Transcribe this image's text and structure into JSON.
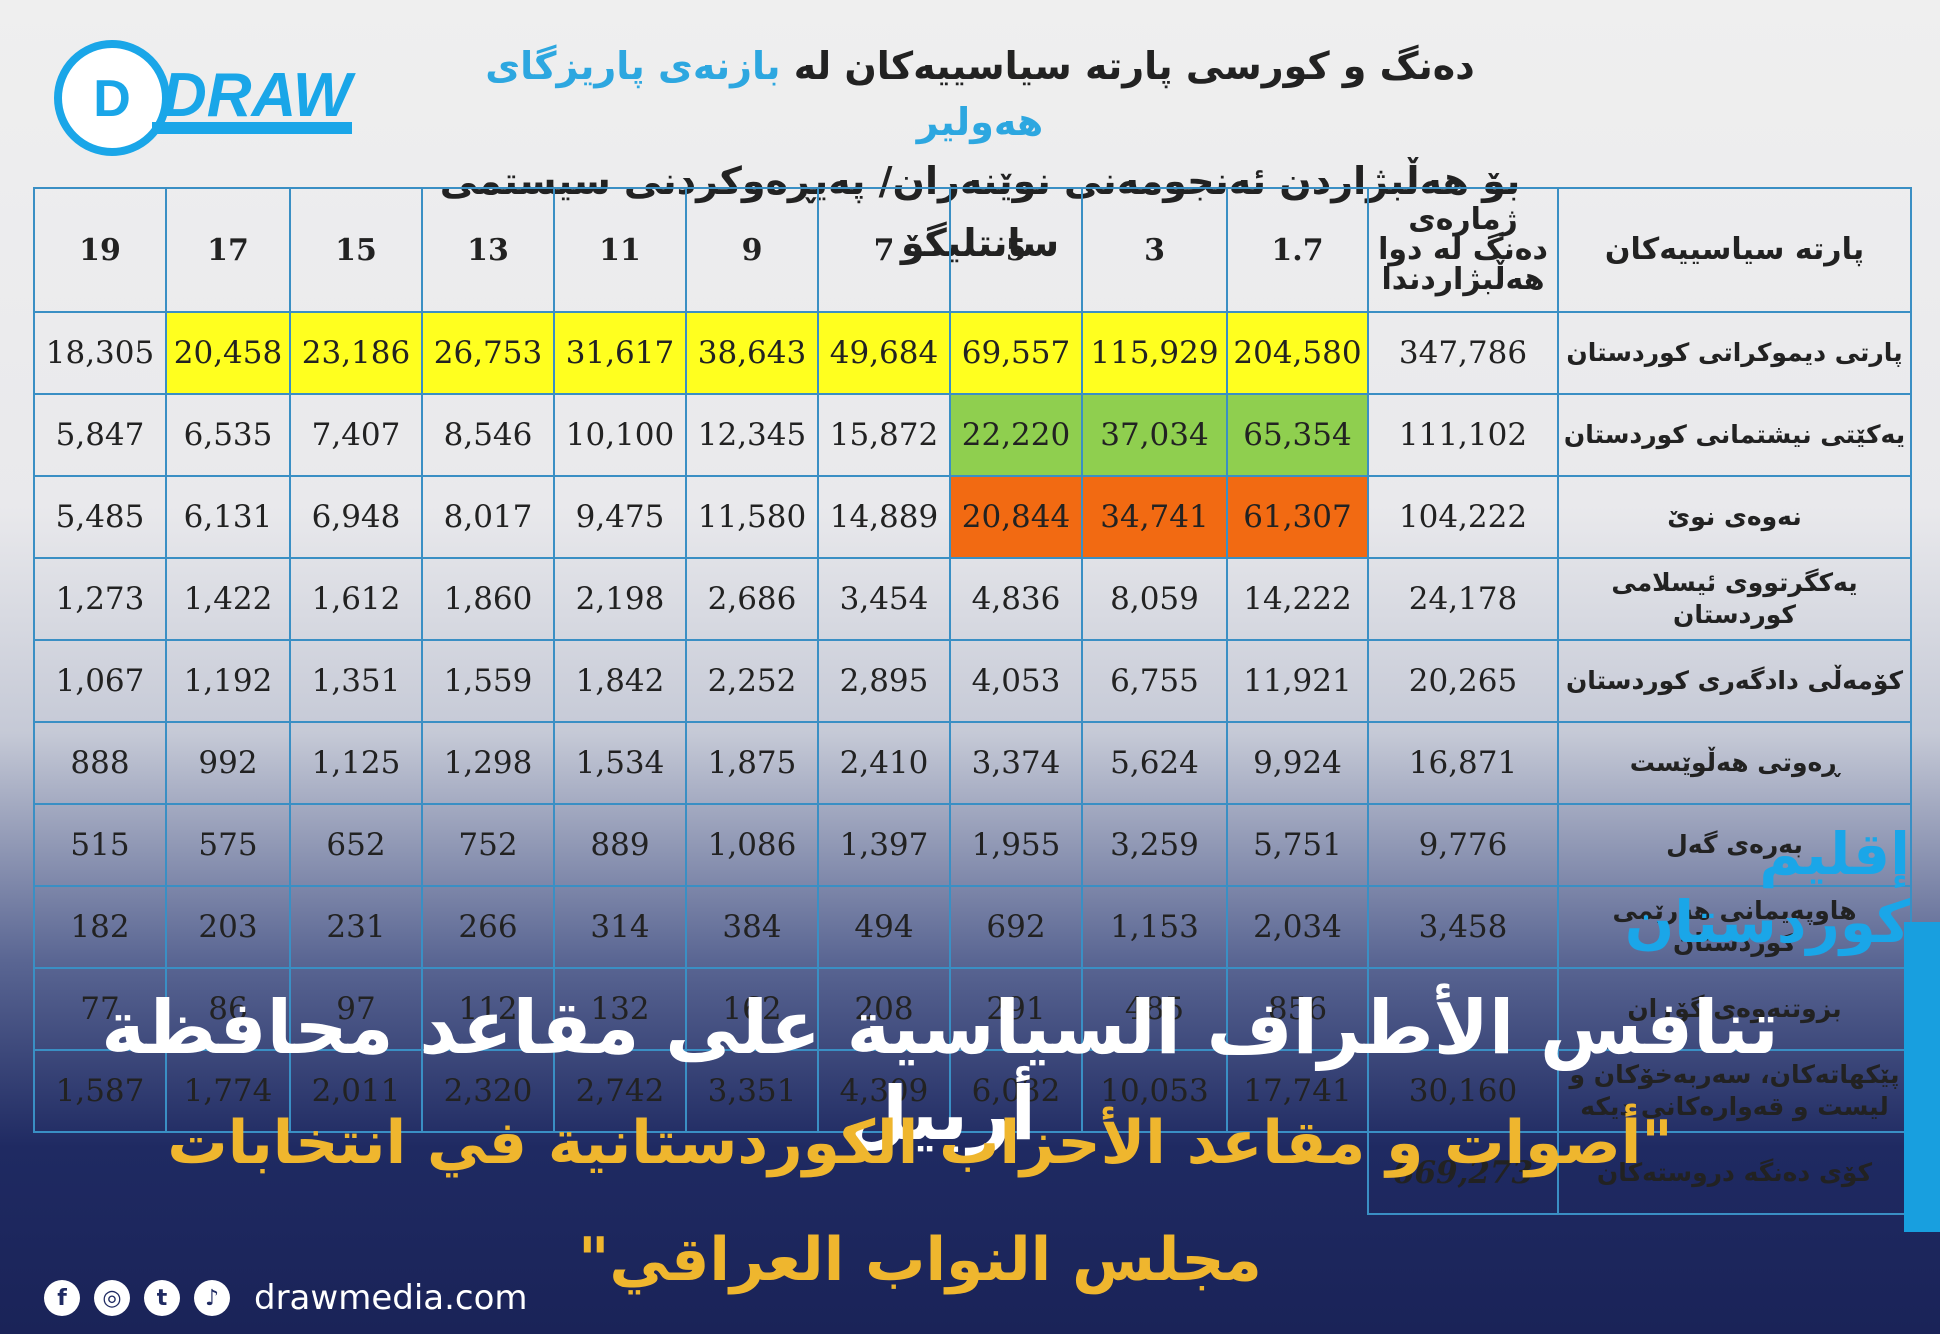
{
  "logo": {
    "text": "DRAW"
  },
  "header": {
    "line1_part_a": "دەنگ و کورسی پارتە سیاسییەکان لە ",
    "line1_highlight": "بازنەی پاریزگای هەولیر",
    "line2": "بۆ هەڵبژاردن ئەنجومەنی نوێنەران/ پەیڕەوکردنی سیستمی سانتلیگۆ"
  },
  "table": {
    "party_header": "پارتە سیاسییەکان",
    "votes_header": "ژمارەی دەنگ لە دوا هەڵبژاردندا",
    "divisors": [
      "19",
      "17",
      "15",
      "13",
      "11",
      "9",
      "7",
      "5",
      "3",
      "1.7"
    ],
    "rows": [
      {
        "party": "پارتی دیموکراتی کوردستان",
        "votes": "347,786",
        "cells": [
          "18,305",
          "20,458",
          "23,186",
          "26,753",
          "31,617",
          "38,643",
          "49,684",
          "69,557",
          "115,929",
          "204,580"
        ]
      },
      {
        "party": "یەکێتی نیشتمانی کوردستان",
        "votes": "111,102",
        "cells": [
          "5,847",
          "6,535",
          "7,407",
          "8,546",
          "10,100",
          "12,345",
          "15,872",
          "22,220",
          "37,034",
          "65,354"
        ]
      },
      {
        "party": "نەوەی نوێ",
        "votes": "104,222",
        "cells": [
          "5,485",
          "6,131",
          "6,948",
          "8,017",
          "9,475",
          "11,580",
          "14,889",
          "20,844",
          "34,741",
          "61,307"
        ]
      },
      {
        "party": "یەکگرتووی ئیسلامی کوردستان",
        "votes": "24,178",
        "cells": [
          "1,273",
          "1,422",
          "1,612",
          "1,860",
          "2,198",
          "2,686",
          "3,454",
          "4,836",
          "8,059",
          "14,222"
        ]
      },
      {
        "party": "کۆمەڵی دادگەری کوردستان",
        "votes": "20,265",
        "cells": [
          "1,067",
          "1,192",
          "1,351",
          "1,559",
          "1,842",
          "2,252",
          "2,895",
          "4,053",
          "6,755",
          "11,921"
        ]
      },
      {
        "party": "ڕەوتی هەڵوێست",
        "votes": "16,871",
        "cells": [
          "888",
          "992",
          "1,125",
          "1,298",
          "1,534",
          "1,875",
          "2,410",
          "3,374",
          "5,624",
          "9,924"
        ]
      },
      {
        "party": "بەرەی گەل",
        "votes": "9,776",
        "cells": [
          "515",
          "575",
          "652",
          "752",
          "889",
          "1,086",
          "1,397",
          "1,955",
          "3,259",
          "5,751"
        ]
      },
      {
        "party": "هاوپەیمانی هەرێمی کوردستان",
        "votes": "3,458",
        "cells": [
          "182",
          "203",
          "231",
          "266",
          "314",
          "384",
          "494",
          "692",
          "1,153",
          "2,034"
        ]
      },
      {
        "party": "بزوتنەوەی گۆڕان",
        "votes": "",
        "cells": [
          "77",
          "86",
          "97",
          "112",
          "132",
          "162",
          "208",
          "291",
          "485",
          "856"
        ]
      },
      {
        "party": "پێکهاتەکان، سەربەخۆکان و لیست و قەوارەکانی دیکە",
        "votes": "30,160",
        "cells": [
          "1,587",
          "1,774",
          "2,011",
          "2,320",
          "2,742",
          "3,351",
          "4,309",
          "6,032",
          "10,053",
          "17,741"
        ]
      }
    ],
    "total_votes": "669,273",
    "total_label": "کۆی دەنگە دروستەکان"
  },
  "region_label": "إقليم كوردستان",
  "title": "تنافس الأطراف السياسية على مقاعد محافظة أربيل",
  "subtitle_line1": "\"أصوات و مقاعد الأحزاب الكوردستانية في انتخابات",
  "subtitle_line2": "مجلس النواب العراقي\"",
  "social": {
    "icons": [
      "facebook-icon",
      "instagram-icon",
      "twitter-icon",
      "tiktok-icon"
    ],
    "website": "drawmedia.com"
  },
  "colors": {
    "yellow": "#ffff1f",
    "green": "#8fcf4f",
    "orange": "#f26a12",
    "accent": "#189fdf",
    "gold": "#efb62e"
  }
}
